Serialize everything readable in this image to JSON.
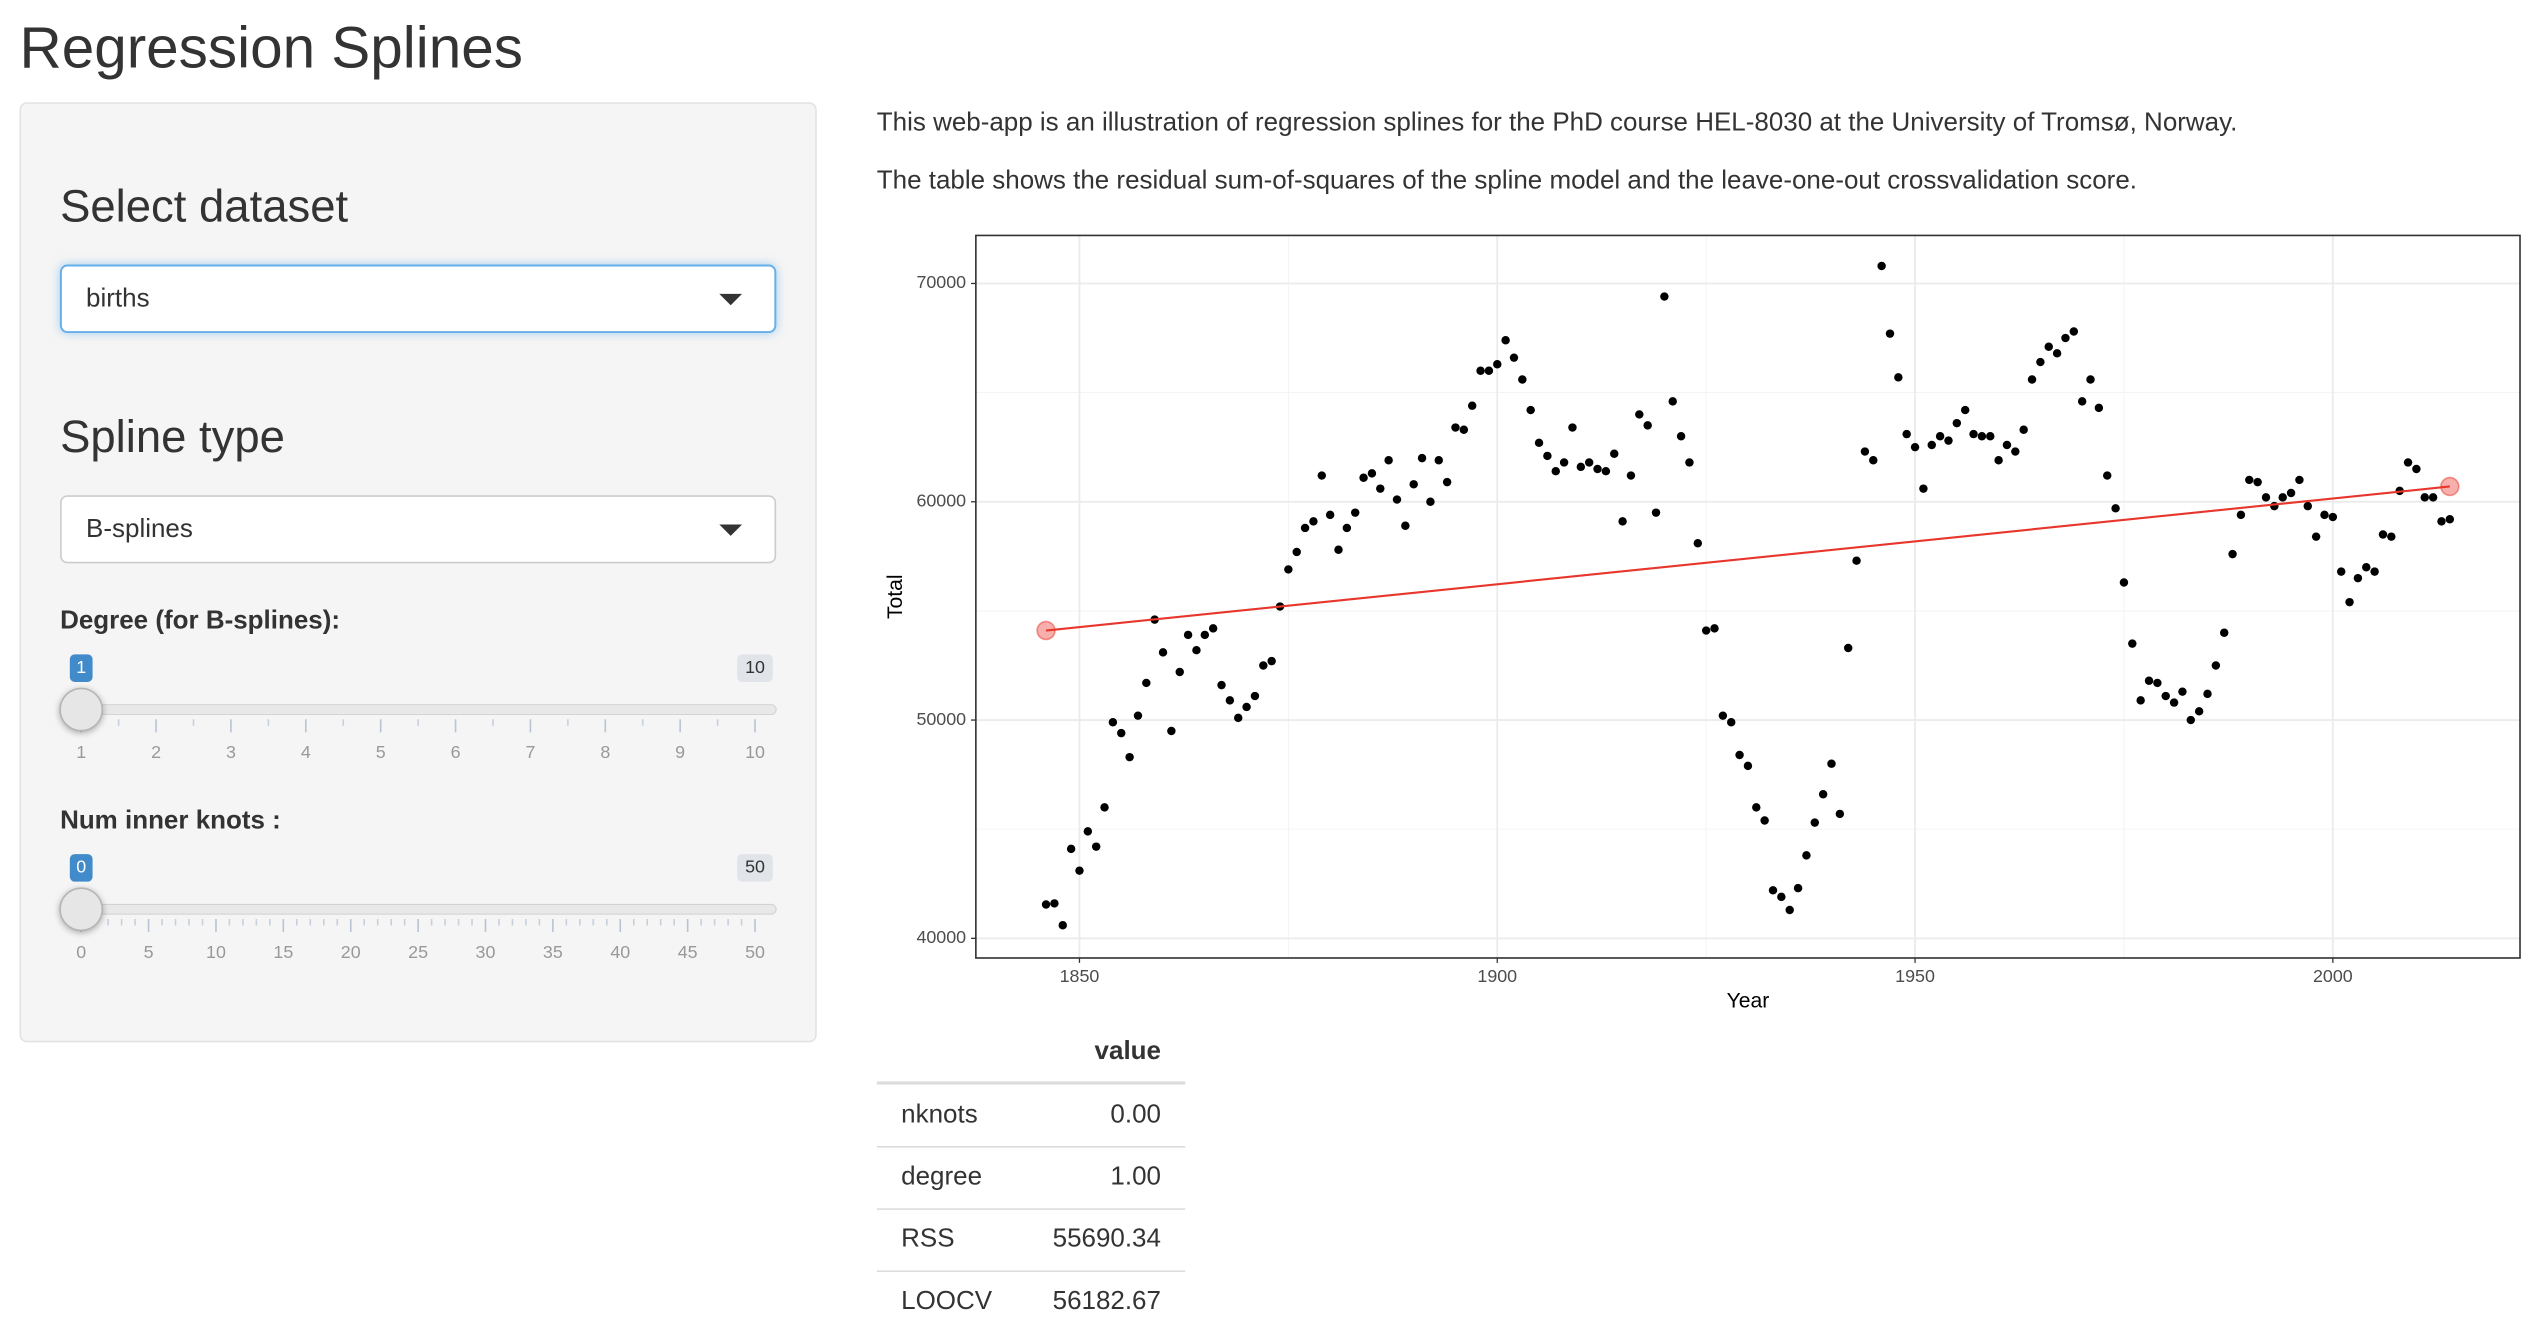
{
  "title": "Regression Splines",
  "sidebar": {
    "dataset_label": "Select dataset",
    "dataset": "births",
    "spline_label": "Spline type",
    "spline": "B-splines",
    "degree": {
      "label": "Degree (for B-splines):",
      "min": 1,
      "max": 10,
      "value": 1,
      "ticks": [
        1,
        2,
        3,
        4,
        5,
        6,
        7,
        8,
        9,
        10
      ]
    },
    "knots": {
      "label": "Num inner knots :",
      "min": 0,
      "max": 50,
      "value": 0,
      "ticks": [
        0,
        5,
        10,
        15,
        20,
        25,
        30,
        35,
        40,
        45,
        50
      ]
    }
  },
  "description": [
    "This web-app is an illustration of regression splines for the PhD course HEL-8030 at the University of Tromsø, Norway.",
    "The table shows the residual sum-of-squares of the spline model and the leave-one-out crossvalidation score."
  ],
  "chart_data": {
    "type": "scatter",
    "x_label": "Year",
    "y_label": "Total",
    "xlim": [
      1837.6,
      2022.4
    ],
    "ylim": [
      39100,
      72200
    ],
    "xticks": [
      1850,
      1900,
      1950,
      2000
    ],
    "yticks": [
      40000,
      50000,
      60000,
      70000
    ],
    "grid": true,
    "series": [
      {
        "type": "scatter",
        "color": "#000000",
        "x": [
          1846,
          1847,
          1848,
          1849,
          1850,
          1851,
          1852,
          1853,
          1854,
          1855,
          1856,
          1857,
          1858,
          1859,
          1860,
          1861,
          1862,
          1863,
          1864,
          1865,
          1866,
          1867,
          1868,
          1869,
          1870,
          1871,
          1872,
          1873,
          1874,
          1875,
          1876,
          1877,
          1878,
          1879,
          1880,
          1881,
          1882,
          1883,
          1884,
          1885,
          1886,
          1887,
          1888,
          1889,
          1890,
          1891,
          1892,
          1893,
          1894,
          1895,
          1896,
          1897,
          1898,
          1899,
          1900,
          1901,
          1902,
          1903,
          1904,
          1905,
          1906,
          1907,
          1908,
          1909,
          1910,
          1911,
          1912,
          1913,
          1914,
          1915,
          1916,
          1917,
          1918,
          1919,
          1920,
          1921,
          1922,
          1923,
          1924,
          1925,
          1926,
          1927,
          1928,
          1929,
          1930,
          1931,
          1932,
          1933,
          1934,
          1935,
          1936,
          1937,
          1938,
          1939,
          1940,
          1941,
          1942,
          1943,
          1944,
          1945,
          1946,
          1947,
          1948,
          1949,
          1950,
          1951,
          1952,
          1953,
          1954,
          1955,
          1956,
          1957,
          1958,
          1959,
          1960,
          1961,
          1962,
          1963,
          1964,
          1965,
          1966,
          1967,
          1968,
          1969,
          1970,
          1971,
          1972,
          1973,
          1974,
          1975,
          1976,
          1977,
          1978,
          1979,
          1980,
          1981,
          1982,
          1983,
          1984,
          1985,
          1986,
          1987,
          1988,
          1989,
          1990,
          1991,
          1992,
          1993,
          1994,
          1995,
          1996,
          1997,
          1998,
          1999,
          2000,
          2001,
          2002,
          2003,
          2004,
          2005,
          2006,
          2007,
          2008,
          2009,
          2010,
          2011,
          2012,
          2013,
          2014
        ],
        "values": [
          41550,
          41600,
          40600,
          44100,
          43100,
          44900,
          44200,
          46000,
          49900,
          49400,
          48300,
          50200,
          51700,
          54600,
          53100,
          49500,
          52200,
          53900,
          53200,
          53900,
          54200,
          51600,
          50900,
          50100,
          50600,
          51100,
          52500,
          52700,
          55200,
          56900,
          57700,
          58800,
          59100,
          61200,
          59400,
          57800,
          58800,
          59500,
          61100,
          61300,
          60600,
          61900,
          60100,
          58900,
          60800,
          62000,
          60000,
          61900,
          60900,
          63400,
          63300,
          64400,
          66000,
          66000,
          66300,
          67400,
          66600,
          65600,
          64200,
          62700,
          62100,
          61400,
          61800,
          63400,
          61600,
          61800,
          61500,
          61400,
          62200,
          59100,
          61200,
          64000,
          63500,
          59500,
          69400,
          64600,
          63000,
          61800,
          58100,
          54100,
          54200,
          50200,
          49900,
          48400,
          47900,
          46000,
          45400,
          42200,
          41900,
          41300,
          42300,
          43800,
          45300,
          46600,
          48000,
          45700,
          53300,
          57300,
          62300,
          61900,
          70800,
          67700,
          65700,
          63100,
          62500,
          60600,
          62600,
          63000,
          62800,
          63600,
          64200,
          63100,
          63000,
          63000,
          61900,
          62600,
          62300,
          63300,
          65600,
          66400,
          67100,
          66800,
          67500,
          67800,
          64600,
          65600,
          64300,
          61200,
          59700,
          56300,
          53500,
          50900,
          51800,
          51700,
          51100,
          50800,
          51300,
          50000,
          50400,
          51200,
          52500,
          54000,
          57600,
          59400,
          61000,
          60900,
          60200,
          59800,
          60200,
          60400,
          61000,
          59800,
          58400,
          59400,
          59300,
          56800,
          55400,
          56500,
          57000,
          56800,
          58500,
          58400,
          60500,
          61800,
          61500,
          60200,
          60200,
          59100,
          59200
        ]
      },
      {
        "type": "line",
        "color": "#e8362c",
        "x": [
          1846,
          2014
        ],
        "values": [
          54100,
          60700
        ]
      }
    ]
  },
  "table": {
    "columns": [
      "value"
    ],
    "rows": [
      [
        "nknots",
        "0.00"
      ],
      [
        "degree",
        "1.00"
      ],
      [
        "RSS",
        "55690.34"
      ],
      [
        "LOOCV",
        "56182.67"
      ]
    ]
  }
}
